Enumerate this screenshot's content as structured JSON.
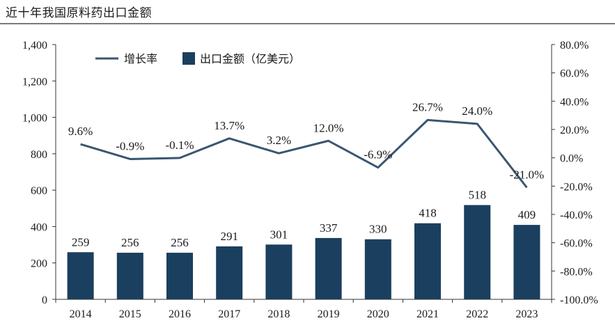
{
  "page_title": "近十年我国原料药出口金额",
  "chart_data": {
    "type": "bar+line",
    "categories": [
      "2014",
      "2015",
      "2016",
      "2017",
      "2018",
      "2019",
      "2020",
      "2021",
      "2022",
      "2023"
    ],
    "series": [
      {
        "name": "出口金额（亿美元）",
        "type": "bar",
        "axis": "left",
        "values": [
          259,
          256,
          256,
          291,
          301,
          337,
          330,
          418,
          518,
          409
        ],
        "labels": [
          "259",
          "256",
          "256",
          "291",
          "301",
          "337",
          "330",
          "418",
          "518",
          "409"
        ]
      },
      {
        "name": "增长率",
        "type": "line",
        "axis": "right",
        "values": [
          9.6,
          -0.9,
          -0.1,
          13.7,
          3.2,
          12.0,
          -6.9,
          26.7,
          24.0,
          -21.0
        ],
        "labels": [
          "9.6%",
          "-0.9%",
          "-0.1%",
          "13.7%",
          "3.2%",
          "12.0%",
          "-6.9%",
          "26.7%",
          "24.0%",
          "-21.0%"
        ]
      }
    ],
    "y_left": {
      "range": [
        0,
        1400
      ],
      "ticks": [
        0,
        200,
        400,
        600,
        800,
        1000,
        1200,
        1400
      ],
      "tick_labels": [
        "0",
        "200",
        "400",
        "600",
        "800",
        "1,000",
        "1,200",
        "1,400"
      ]
    },
    "y_right": {
      "range": [
        -100,
        80
      ],
      "ticks": [
        -100,
        -80,
        -60,
        -40,
        -20,
        0,
        20,
        40,
        60,
        80
      ],
      "tick_labels": [
        "-100.0%",
        "-80.0%",
        "-60.0%",
        "-40.0%",
        "-20.0%",
        "0.0%",
        "20.0%",
        "40.0%",
        "60.0%",
        "80.0%"
      ]
    },
    "legend": {
      "position": "top-left",
      "items": [
        "增长率",
        "出口金额（亿美元）"
      ]
    },
    "grid": false,
    "colors": {
      "bar": "#1b3f5e",
      "line": "#3a5670"
    }
  }
}
